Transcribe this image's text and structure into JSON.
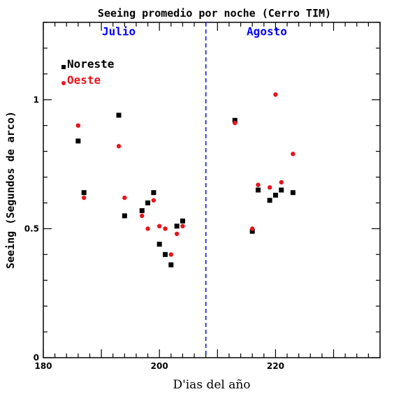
{
  "chart_data": {
    "type": "scatter",
    "title": "Seeing promedio por noche (Cerro TIM)",
    "xlabel": "D'ias del año",
    "ylabel": "Seeing (Segundos de arco)",
    "xlim": [
      180,
      238
    ],
    "ylim": [
      0,
      1.3
    ],
    "x_ticks": [
      180,
      200,
      220
    ],
    "y_ticks": [
      0,
      0.5,
      1
    ],
    "y_tick_labels": [
      "0",
      "0.5",
      "1"
    ],
    "divider_x": 208,
    "divider_color": "#0000ff",
    "grid": false,
    "legend_position": "top-left",
    "annotations": [
      {
        "text": "Julio",
        "x": 193,
        "y": 1.25,
        "color": "#0000ff"
      },
      {
        "text": "Agosto",
        "x": 218.5,
        "y": 1.25,
        "color": "#0000ff"
      }
    ],
    "series": [
      {
        "name": "Noreste",
        "marker": "square",
        "color": "#000000",
        "points": [
          [
            186,
            0.84
          ],
          [
            187,
            0.64
          ],
          [
            193,
            0.94
          ],
          [
            194,
            0.55
          ],
          [
            197,
            0.57
          ],
          [
            198,
            0.6
          ],
          [
            199,
            0.64
          ],
          [
            200,
            0.44
          ],
          [
            201,
            0.4
          ],
          [
            202,
            0.36
          ],
          [
            203,
            0.51
          ],
          [
            204,
            0.53
          ],
          [
            213,
            0.92
          ],
          [
            216,
            0.49
          ],
          [
            217,
            0.65
          ],
          [
            219,
            0.61
          ],
          [
            220,
            0.63
          ],
          [
            221,
            0.65
          ],
          [
            223,
            0.64
          ]
        ]
      },
      {
        "name": "Oeste",
        "marker": "circle",
        "color": "#e8141c",
        "points": [
          [
            186,
            0.9
          ],
          [
            187,
            0.62
          ],
          [
            193,
            0.82
          ],
          [
            194,
            0.62
          ],
          [
            197,
            0.55
          ],
          [
            198,
            0.5
          ],
          [
            199,
            0.61
          ],
          [
            200,
            0.51
          ],
          [
            201,
            0.5
          ],
          [
            202,
            0.4
          ],
          [
            203,
            0.48
          ],
          [
            204,
            0.51
          ],
          [
            213,
            0.91
          ],
          [
            216,
            0.5
          ],
          [
            217,
            0.67
          ],
          [
            219,
            0.66
          ],
          [
            220,
            1.02
          ],
          [
            221,
            0.68
          ],
          [
            223,
            0.79
          ]
        ]
      }
    ]
  }
}
